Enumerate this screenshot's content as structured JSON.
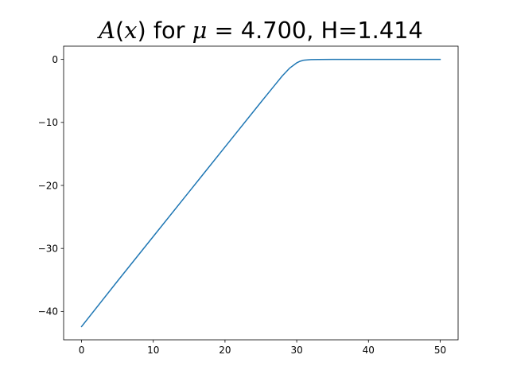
{
  "chart_data": {
    "type": "line",
    "title": {
      "prefix": "A",
      "paren_open": "(",
      "var": "x",
      "paren_close": ")",
      "for_text": " for ",
      "mu": "μ",
      "equals": " = 4.700, H=1.414"
    },
    "xlabel": "",
    "ylabel": "",
    "xlim": [
      -2.5,
      52.5
    ],
    "ylim": [
      -44.5,
      2.1
    ],
    "grid": false,
    "x_ticks": [
      {
        "value": 0,
        "label": "0"
      },
      {
        "value": 10,
        "label": "10"
      },
      {
        "value": 20,
        "label": "20"
      },
      {
        "value": 30,
        "label": "30"
      },
      {
        "value": 40,
        "label": "40"
      },
      {
        "value": 50,
        "label": "50"
      }
    ],
    "y_ticks": [
      {
        "value": 0,
        "label": "0"
      },
      {
        "value": -10,
        "label": "−10"
      },
      {
        "value": -20,
        "label": "−20"
      },
      {
        "value": -30,
        "label": "−30"
      },
      {
        "value": -40,
        "label": "−40"
      }
    ],
    "series": [
      {
        "color": "#1f77b4",
        "x": [
          0,
          5,
          10,
          15,
          20,
          25,
          27,
          28,
          29,
          30,
          30.5,
          31,
          32,
          33,
          35,
          40,
          45,
          50
        ],
        "y": [
          -42.4,
          -35.2,
          -28.1,
          -21.0,
          -13.9,
          -6.8,
          -4.0,
          -2.6,
          -1.4,
          -0.55,
          -0.28,
          -0.12,
          -0.03,
          -0.01,
          0,
          0,
          0,
          0
        ]
      }
    ]
  }
}
